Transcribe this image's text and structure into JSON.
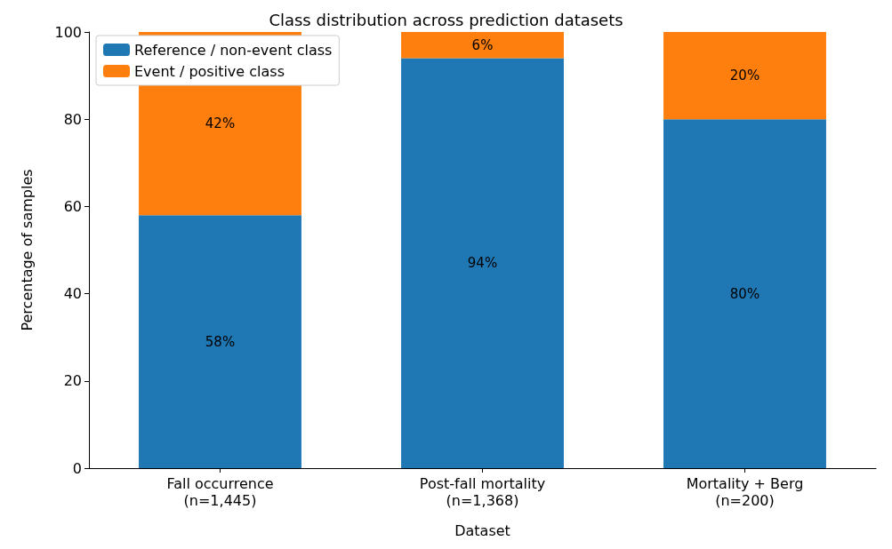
{
  "chart_data": {
    "type": "bar",
    "title": "Class distribution across prediction datasets",
    "xlabel": "Dataset",
    "ylabel": "Percentage of samples",
    "categories": [
      "Fall occurrence\n(n=1,445)",
      "Post-fall mortality\n(n=1,368)",
      "Mortality + Berg\n(n=200)"
    ],
    "stacked": true,
    "series": [
      {
        "name": "Reference / non-event class",
        "color": "#1f77b4",
        "values": [
          58,
          94,
          80
        ],
        "value_labels": [
          "58%",
          "94%",
          "80%"
        ]
      },
      {
        "name": "Event / positive class",
        "color": "#ff7f0e",
        "values": [
          42,
          6,
          20
        ],
        "value_labels": [
          "42%",
          "6%",
          "20%"
        ]
      }
    ],
    "ylim": [
      0,
      100
    ],
    "yticks": [
      0,
      20,
      40,
      60,
      80,
      100
    ],
    "grid": false,
    "legend": "top left"
  }
}
